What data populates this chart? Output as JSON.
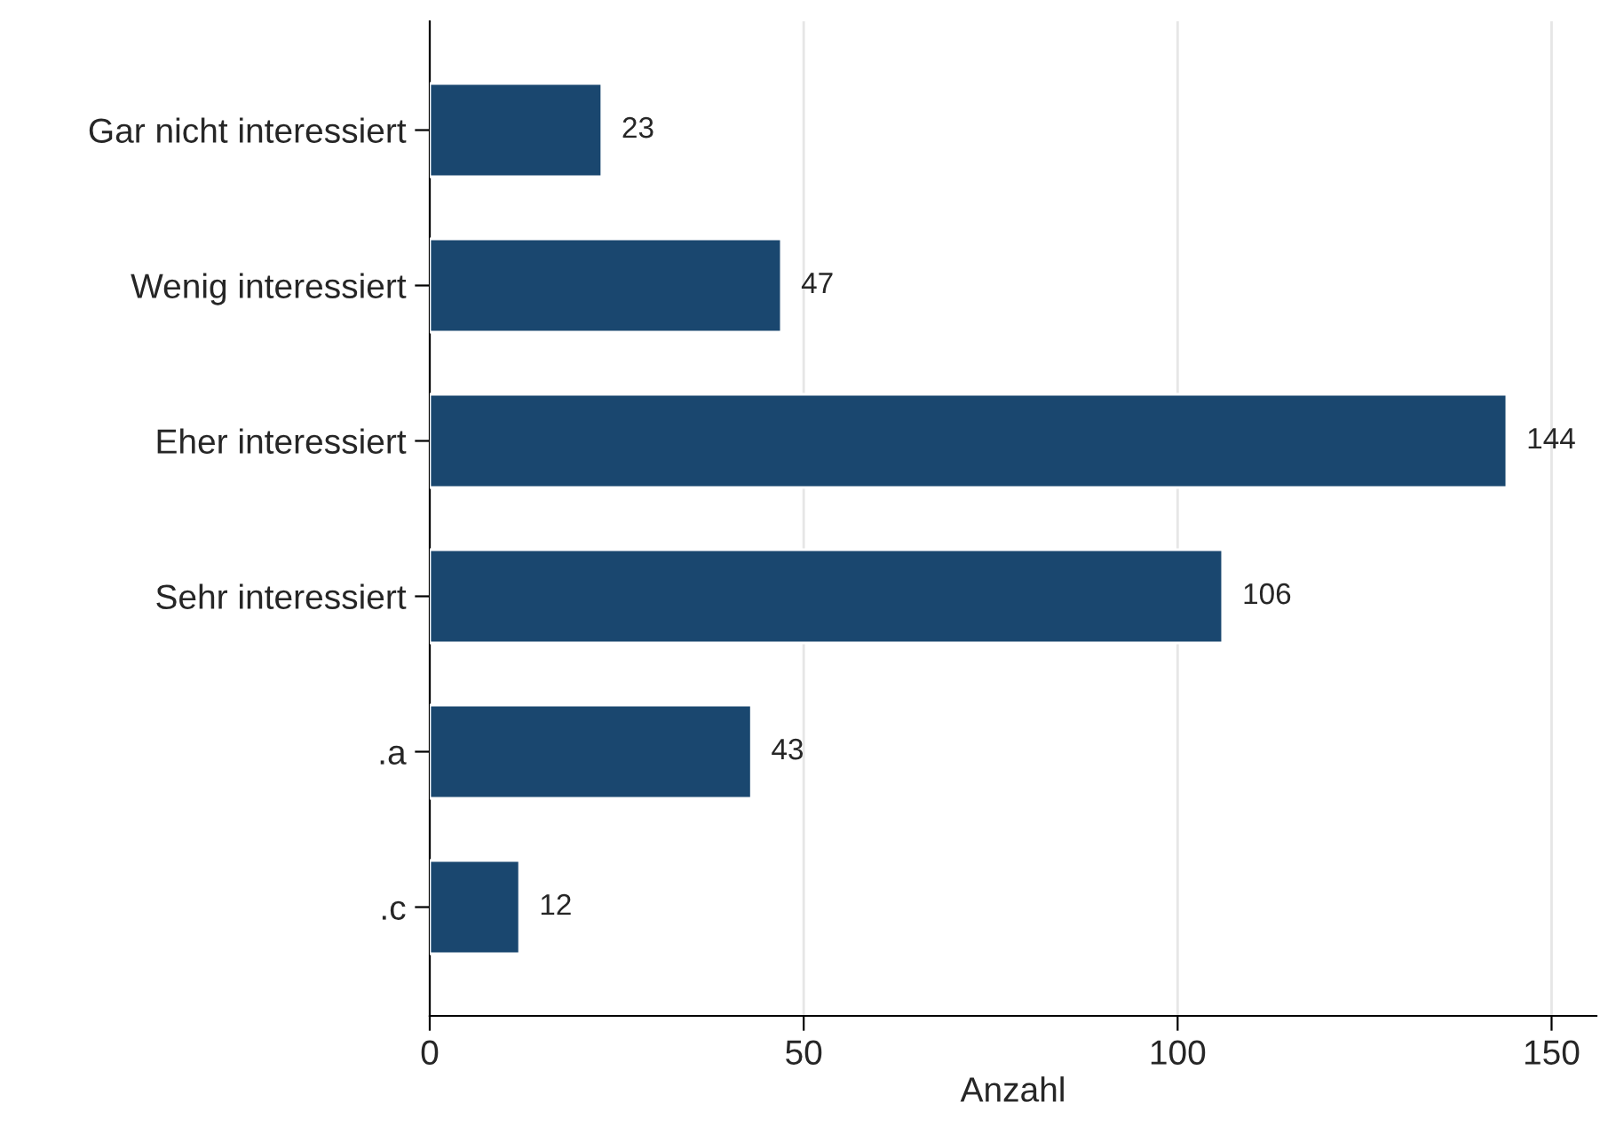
{
  "chart_data": {
    "type": "bar",
    "orientation": "horizontal",
    "xlabel": "Anzahl",
    "categories": [
      "Gar nicht interessiert",
      "Wenig interessiert",
      "Eher interessiert",
      "Sehr interessiert",
      ".a",
      ".c"
    ],
    "values": [
      23,
      47,
      144,
      106,
      43,
      12
    ],
    "color": "#1a476f",
    "xlim": [
      0,
      156
    ],
    "xticks": [
      0,
      50,
      100,
      150
    ],
    "grid": "x",
    "data_labels": true
  }
}
